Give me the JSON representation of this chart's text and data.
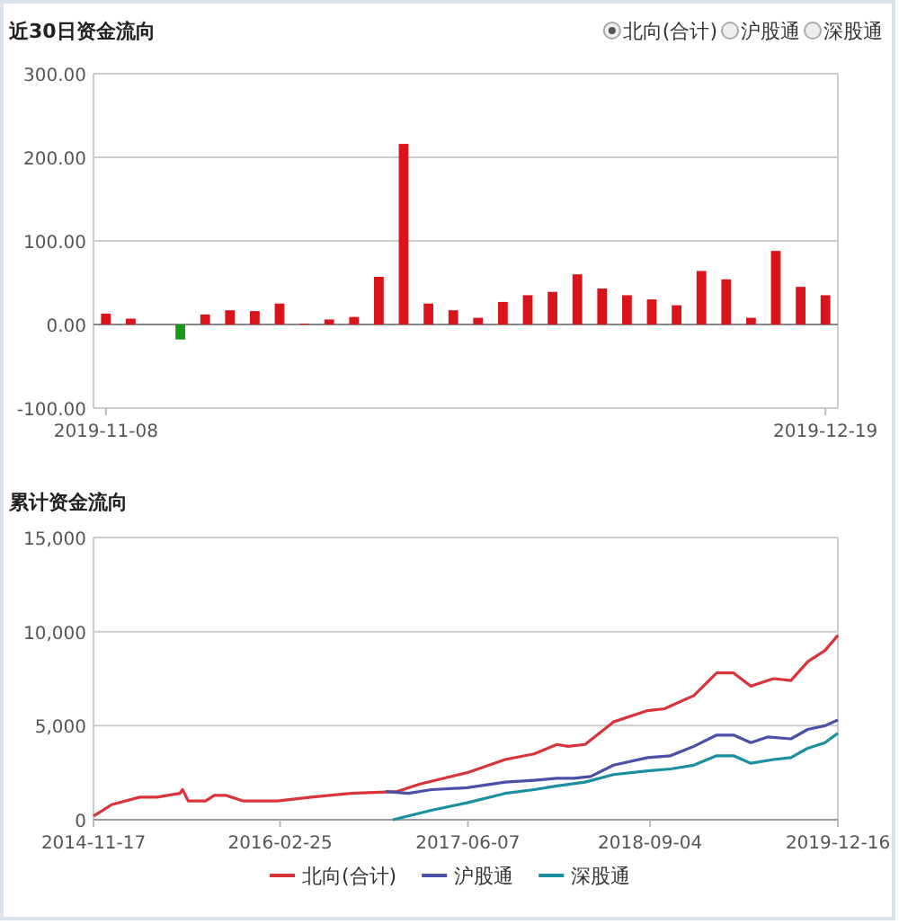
{
  "chart_data": [
    {
      "type": "bar",
      "title": "近30日资金流向",
      "annotations": [
        "北向(合计)",
        "沪股通",
        "深股通"
      ],
      "categories": [
        "2019-11-08",
        null,
        null,
        null,
        null,
        null,
        null,
        null,
        null,
        null,
        null,
        null,
        null,
        null,
        null,
        null,
        null,
        null,
        null,
        null,
        null,
        null,
        null,
        null,
        null,
        null,
        null,
        null,
        null,
        "2019-12-19"
      ],
      "values": [
        13,
        7,
        null,
        -18,
        12,
        17,
        16,
        25,
        1,
        6,
        9,
        57,
        216,
        25,
        17,
        8,
        27,
        35,
        39,
        60,
        43,
        35,
        30,
        23,
        64,
        54,
        8,
        88,
        45,
        35
      ],
      "colors": [
        "#d9141b",
        "#d9141b",
        null,
        "#1a9a1a",
        "#d9141b",
        "#d9141b",
        "#d9141b",
        "#d9141b",
        "#d9141b",
        "#d9141b",
        "#d9141b",
        "#d9141b",
        "#d9141b",
        "#d9141b",
        "#d9141b",
        "#d9141b",
        "#d9141b",
        "#d9141b",
        "#d9141b",
        "#d9141b",
        "#d9141b",
        "#d9141b",
        "#d9141b",
        "#d9141b",
        "#d9141b",
        "#d9141b",
        "#d9141b",
        "#d9141b",
        "#d9141b",
        "#d9141b"
      ],
      "ylim": [
        -100,
        300
      ],
      "yticks": [
        {
          "value": -100,
          "label": "-100.00"
        },
        {
          "value": 0,
          "label": "0.00"
        },
        {
          "value": 100,
          "label": "100.00"
        },
        {
          "value": 200,
          "label": "200.00"
        },
        {
          "value": 300,
          "label": "300.00"
        }
      ],
      "grid": "y"
    },
    {
      "type": "line",
      "title": "累计资金流向",
      "legend": "bottom",
      "grid": "y",
      "xlim": [
        "2014-11-17",
        "2019-12-16"
      ],
      "xticks": [
        "2014-11-17",
        "2016-02-25",
        "2017-06-07",
        "2018-09-04",
        "2019-12-16"
      ],
      "ylim": [
        0,
        15000
      ],
      "yticks": [
        {
          "value": 0,
          "label": "0"
        },
        {
          "value": 5000,
          "label": "5,000"
        },
        {
          "value": 10000,
          "label": "10,000"
        },
        {
          "value": 15000,
          "label": "15,000"
        }
      ],
      "series": [
        {
          "name": "北向(合计)",
          "color": "#d9343a",
          "x": [
            "2014-11-17",
            "2014-12-10",
            "2015-01-01",
            "2015-03-12",
            "2015-04-24",
            "2015-06-20",
            "2015-06-27",
            "2015-07-11",
            "2015-08-23",
            "2015-09-14",
            "2015-10-12",
            "2015-11-24",
            "2016-02-18",
            "2016-05-12",
            "2016-08-20",
            "2016-12-13",
            "2017-02-08",
            "2017-06-05",
            "2017-09-08",
            "2017-11-19",
            "2018-01-15",
            "2018-02-12",
            "2018-03-26",
            "2018-06-05",
            "2018-08-29",
            "2018-10-10",
            "2018-12-22",
            "2019-02-17",
            "2019-03-31",
            "2019-05-13",
            "2019-07-09",
            "2019-08-21",
            "2019-10-02",
            "2019-11-14",
            "2019-12-16"
          ],
          "values": [
            200,
            500,
            800,
            1200,
            1200,
            1400,
            1600,
            1000,
            1000,
            1300,
            1300,
            1000,
            1000,
            1200,
            1400,
            1500,
            1900,
            2500,
            3200,
            3500,
            4000,
            3900,
            4000,
            5200,
            5800,
            5900,
            6600,
            7800,
            7800,
            7100,
            7500,
            7400,
            8400,
            9000,
            9800
          ]
        },
        {
          "name": "沪股通",
          "color": "#4b4fa8",
          "x": [
            "2016-11-14",
            "2017-01-10",
            "2017-03-08",
            "2017-06-05",
            "2017-09-08",
            "2017-11-19",
            "2018-01-15",
            "2018-02-26",
            "2018-04-09",
            "2018-06-05",
            "2018-08-29",
            "2018-10-25",
            "2018-12-22",
            "2019-02-17",
            "2019-03-31",
            "2019-05-13",
            "2019-06-24",
            "2019-08-21",
            "2019-10-02",
            "2019-11-14",
            "2019-12-16"
          ],
          "values": [
            1500,
            1400,
            1600,
            1700,
            2000,
            2100,
            2200,
            2200,
            2300,
            2900,
            3300,
            3400,
            3900,
            4500,
            4500,
            4100,
            4400,
            4300,
            4800,
            5000,
            5300
          ]
        },
        {
          "name": "深股通",
          "color": "#1a8fa0",
          "x": [
            "2016-12-02",
            "2017-03-08",
            "2017-06-05",
            "2017-09-08",
            "2017-11-19",
            "2018-01-15",
            "2018-03-26",
            "2018-06-05",
            "2018-08-29",
            "2018-10-25",
            "2018-12-22",
            "2019-02-17",
            "2019-03-31",
            "2019-05-13",
            "2019-07-09",
            "2019-08-21",
            "2019-10-02",
            "2019-11-14",
            "2019-12-16"
          ],
          "values": [
            0,
            500,
            900,
            1400,
            1600,
            1800,
            2000,
            2400,
            2600,
            2700,
            2900,
            3400,
            3400,
            3000,
            3200,
            3300,
            3800,
            4100,
            4600
          ]
        }
      ]
    }
  ]
}
